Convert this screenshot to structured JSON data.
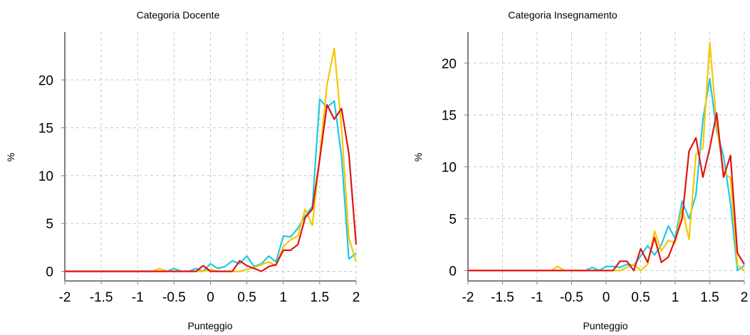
{
  "chart_data": [
    {
      "type": "line",
      "title": "Categoria Docente",
      "xlabel": "Punteggio",
      "ylabel": "%",
      "xlim": [
        -2,
        2
      ],
      "ylim": [
        -1,
        25
      ],
      "xticks": [
        -2,
        -1.5,
        -1,
        -0.5,
        0,
        0.5,
        1,
        1.5,
        2
      ],
      "xtick_labels": [
        "-2",
        "-1.5",
        "-1",
        "-0.5",
        "0",
        "0.5",
        "1",
        "1.5",
        "2"
      ],
      "yticks": [
        0,
        5,
        10,
        15,
        20
      ],
      "ytick_labels": [
        "0",
        "5",
        "10",
        "15",
        "20"
      ],
      "grid": true,
      "series": [
        {
          "color": "#1fc8e6",
          "x": [
            -2,
            -1.9,
            -1.8,
            -1.7,
            -1.6,
            -1.5,
            -1.4,
            -1.3,
            -1.2,
            -1.1,
            -1,
            -0.9,
            -0.8,
            -0.7,
            -0.6,
            -0.5,
            -0.4,
            -0.3,
            -0.2,
            -0.1,
            0,
            0.1,
            0.2,
            0.3,
            0.4,
            0.5,
            0.6,
            0.7,
            0.8,
            0.9,
            1,
            1.1,
            1.2,
            1.3,
            1.4,
            1.5,
            1.6,
            1.7,
            1.8,
            1.9,
            2
          ],
          "y": [
            0,
            0,
            0,
            0,
            0,
            0,
            0,
            0,
            0,
            0,
            0,
            0,
            0,
            0,
            0,
            0.3,
            0,
            0,
            0.3,
            0,
            0.8,
            0.3,
            0.5,
            1.1,
            0.8,
            1.6,
            0.5,
            0.8,
            1.6,
            1.0,
            3.7,
            3.6,
            4.5,
            5.8,
            6.8,
            18.0,
            17.1,
            17.8,
            12.0,
            1.3,
            1.9
          ]
        },
        {
          "color": "#f5c800",
          "x": [
            -2,
            -1.9,
            -1.8,
            -1.7,
            -1.6,
            -1.5,
            -1.4,
            -1.3,
            -1.2,
            -1.1,
            -1,
            -0.9,
            -0.8,
            -0.7,
            -0.6,
            -0.5,
            -0.4,
            -0.3,
            -0.2,
            -0.1,
            0,
            0.1,
            0.2,
            0.3,
            0.4,
            0.5,
            0.6,
            0.7,
            0.8,
            0.9,
            1,
            1.1,
            1.2,
            1.3,
            1.4,
            1.5,
            1.6,
            1.7,
            1.8,
            1.9,
            2
          ],
          "y": [
            0,
            0,
            0,
            0,
            0,
            0,
            0,
            0,
            0,
            0,
            0,
            0,
            0,
            0.3,
            0,
            0,
            0,
            0,
            0,
            0,
            0.2,
            0,
            0,
            0,
            0,
            0.2,
            0.4,
            0.7,
            1.0,
            0.6,
            2.6,
            3.3,
            3.7,
            6.5,
            4.8,
            12.0,
            19.5,
            23.3,
            15.0,
            3.5,
            1.0
          ]
        },
        {
          "color": "#e01414",
          "x": [
            -2,
            -1.9,
            -1.8,
            -1.7,
            -1.6,
            -1.5,
            -1.4,
            -1.3,
            -1.2,
            -1.1,
            -1,
            -0.9,
            -0.8,
            -0.7,
            -0.6,
            -0.5,
            -0.4,
            -0.3,
            -0.2,
            -0.1,
            0,
            0.1,
            0.2,
            0.3,
            0.4,
            0.5,
            0.6,
            0.7,
            0.8,
            0.9,
            1,
            1.1,
            1.2,
            1.3,
            1.4,
            1.5,
            1.6,
            1.7,
            1.8,
            1.9,
            2
          ],
          "y": [
            0,
            0,
            0,
            0,
            0,
            0,
            0,
            0,
            0,
            0,
            0,
            0,
            0,
            0,
            0,
            0,
            0,
            0,
            0,
            0.6,
            0,
            0,
            0,
            0,
            1.1,
            0.6,
            0.3,
            0,
            0.5,
            0.7,
            2.2,
            2.2,
            2.8,
            5.6,
            6.5,
            11.7,
            17.4,
            15.9,
            17.0,
            12.3,
            2.8
          ]
        }
      ]
    },
    {
      "type": "line",
      "title": "Categoria Insegnamento",
      "xlabel": "Punteggio",
      "ylabel": "%",
      "xlim": [
        -2,
        2
      ],
      "ylim": [
        -1,
        23
      ],
      "xticks": [
        -2,
        -1.5,
        -1,
        -0.5,
        0,
        0.5,
        1,
        1.5,
        2
      ],
      "xtick_labels": [
        "-2",
        "-1.5",
        "-1",
        "-0.5",
        "0",
        "0.5",
        "1",
        "1.5",
        "2"
      ],
      "yticks": [
        0,
        5,
        10,
        15,
        20
      ],
      "ytick_labels": [
        "0",
        "5",
        "10",
        "15",
        "20"
      ],
      "grid": true,
      "series": [
        {
          "color": "#1fc8e6",
          "x": [
            -2,
            -1.9,
            -1.8,
            -1.7,
            -1.6,
            -1.5,
            -1.4,
            -1.3,
            -1.2,
            -1.1,
            -1,
            -0.9,
            -0.8,
            -0.7,
            -0.6,
            -0.5,
            -0.4,
            -0.3,
            -0.2,
            -0.1,
            0,
            0.1,
            0.2,
            0.3,
            0.4,
            0.5,
            0.6,
            0.7,
            0.8,
            0.9,
            1,
            1.1,
            1.2,
            1.3,
            1.4,
            1.5,
            1.6,
            1.7,
            1.8,
            1.9,
            2
          ],
          "y": [
            0,
            0,
            0,
            0,
            0,
            0,
            0,
            0,
            0,
            0,
            0,
            0,
            0,
            0,
            0,
            0,
            0,
            0,
            0.3,
            0,
            0.4,
            0.4,
            0.3,
            0.6,
            0.5,
            1.4,
            2.4,
            1.5,
            2.5,
            4.3,
            3.1,
            6.7,
            5.0,
            7.3,
            14.5,
            18.5,
            13.5,
            11.0,
            6.5,
            0,
            0.5
          ]
        },
        {
          "color": "#f5c800",
          "x": [
            -2,
            -1.9,
            -1.8,
            -1.7,
            -1.6,
            -1.5,
            -1.4,
            -1.3,
            -1.2,
            -1.1,
            -1,
            -0.9,
            -0.8,
            -0.7,
            -0.6,
            -0.5,
            -0.4,
            -0.3,
            -0.2,
            -0.1,
            0,
            0.1,
            0.2,
            0.3,
            0.4,
            0.5,
            0.6,
            0.7,
            0.8,
            0.9,
            1,
            1.1,
            1.2,
            1.3,
            1.4,
            1.5,
            1.6,
            1.7,
            1.8,
            1.9,
            2
          ],
          "y": [
            0,
            0,
            0,
            0,
            0,
            0,
            0,
            0,
            0,
            0,
            0,
            0,
            0,
            0.4,
            0,
            0,
            0,
            0,
            0,
            0,
            0,
            0,
            0,
            0.3,
            0.6,
            0,
            0.6,
            3.8,
            1.9,
            2.9,
            2.7,
            6.1,
            3.0,
            11.2,
            11.8,
            22.0,
            14.0,
            9.5,
            8.9,
            0.5,
            0
          ]
        },
        {
          "color": "#e01414",
          "x": [
            -2,
            -1.9,
            -1.8,
            -1.7,
            -1.6,
            -1.5,
            -1.4,
            -1.3,
            -1.2,
            -1.1,
            -1,
            -0.9,
            -0.8,
            -0.7,
            -0.6,
            -0.5,
            -0.4,
            -0.3,
            -0.2,
            -0.1,
            0,
            0.1,
            0.2,
            0.3,
            0.4,
            0.5,
            0.6,
            0.7,
            0.8,
            0.9,
            1,
            1.1,
            1.2,
            1.3,
            1.4,
            1.5,
            1.6,
            1.7,
            1.8,
            1.9,
            2
          ],
          "y": [
            0,
            0,
            0,
            0,
            0,
            0,
            0,
            0,
            0,
            0,
            0,
            0,
            0,
            0,
            0,
            0,
            0,
            0,
            0,
            0,
            0,
            0,
            0.9,
            0.9,
            0,
            2.1,
            0.8,
            3.2,
            0.8,
            1.3,
            3.0,
            5.0,
            11.5,
            12.8,
            9.0,
            11.8,
            15.2,
            9.0,
            11.1,
            1.7,
            0.6
          ]
        }
      ]
    }
  ]
}
